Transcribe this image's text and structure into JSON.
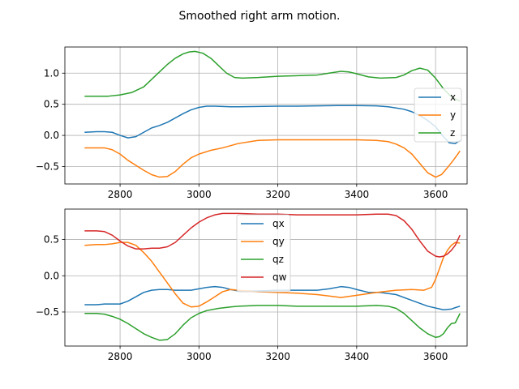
{
  "figure": {
    "title": "Smoothed right arm motion."
  },
  "chart_data": [
    {
      "type": "line",
      "title": "Smoothed right arm motion.",
      "xlabel": "",
      "ylabel": "",
      "xlim": [
        2660,
        3680
      ],
      "ylim": [
        -0.78,
        1.42
      ],
      "xticks": [
        2800,
        3000,
        3200,
        3400,
        3600
      ],
      "yticks": [
        -0.5,
        0.0,
        0.5,
        1.0
      ],
      "xtick_labels": [
        "2800",
        "3000",
        "3200",
        "3400",
        "3600"
      ],
      "ytick_labels": [
        "−0.5",
        "0.0",
        "0.5",
        "1.0"
      ],
      "grid": true,
      "legend_position": "right",
      "series": [
        {
          "name": "x",
          "color": "#1f77b4",
          "x": [
            2710,
            2740,
            2760,
            2780,
            2800,
            2820,
            2840,
            2860,
            2880,
            2900,
            2920,
            2940,
            2960,
            2980,
            3000,
            3020,
            3040,
            3060,
            3080,
            3100,
            3150,
            3200,
            3250,
            3300,
            3350,
            3400,
            3450,
            3480,
            3500,
            3520,
            3540,
            3560,
            3580,
            3600,
            3620,
            3635,
            3650,
            3662
          ],
          "y": [
            0.05,
            0.06,
            0.06,
            0.05,
            0.0,
            -0.04,
            -0.02,
            0.05,
            0.12,
            0.16,
            0.21,
            0.28,
            0.35,
            0.41,
            0.45,
            0.47,
            0.47,
            0.465,
            0.46,
            0.46,
            0.465,
            0.47,
            0.47,
            0.475,
            0.48,
            0.48,
            0.475,
            0.46,
            0.44,
            0.42,
            0.38,
            0.32,
            0.24,
            0.14,
            -0.02,
            -0.12,
            -0.13,
            -0.08
          ]
        },
        {
          "name": "y",
          "color": "#ff7f0e",
          "x": [
            2710,
            2740,
            2760,
            2780,
            2800,
            2820,
            2840,
            2860,
            2880,
            2900,
            2920,
            2940,
            2960,
            2980,
            3000,
            3030,
            3060,
            3100,
            3150,
            3200,
            3250,
            3300,
            3350,
            3400,
            3450,
            3480,
            3500,
            3520,
            3540,
            3560,
            3580,
            3600,
            3615,
            3630,
            3645,
            3662
          ],
          "y": [
            -0.2,
            -0.2,
            -0.2,
            -0.23,
            -0.3,
            -0.4,
            -0.48,
            -0.56,
            -0.63,
            -0.67,
            -0.66,
            -0.58,
            -0.46,
            -0.36,
            -0.3,
            -0.24,
            -0.2,
            -0.13,
            -0.08,
            -0.07,
            -0.07,
            -0.07,
            -0.07,
            -0.07,
            -0.08,
            -0.1,
            -0.14,
            -0.2,
            -0.3,
            -0.45,
            -0.6,
            -0.67,
            -0.63,
            -0.52,
            -0.4,
            -0.25
          ]
        },
        {
          "name": "z",
          "color": "#2ca02c",
          "x": [
            2710,
            2740,
            2770,
            2800,
            2830,
            2860,
            2880,
            2900,
            2920,
            2940,
            2960,
            2975,
            2990,
            3010,
            3030,
            3050,
            3070,
            3090,
            3110,
            3150,
            3200,
            3250,
            3300,
            3330,
            3360,
            3380,
            3400,
            3430,
            3460,
            3500,
            3520,
            3540,
            3560,
            3580,
            3600,
            3620,
            3640,
            3662
          ],
          "y": [
            0.63,
            0.63,
            0.63,
            0.65,
            0.69,
            0.78,
            0.9,
            1.02,
            1.14,
            1.24,
            1.31,
            1.34,
            1.35,
            1.32,
            1.24,
            1.12,
            1.0,
            0.93,
            0.92,
            0.93,
            0.95,
            0.96,
            0.97,
            1.0,
            1.03,
            1.02,
            0.99,
            0.94,
            0.92,
            0.93,
            0.97,
            1.04,
            1.08,
            1.05,
            0.92,
            0.75,
            0.62,
            0.55
          ]
        }
      ]
    },
    {
      "type": "line",
      "xlabel": "",
      "ylabel": "",
      "xlim": [
        2660,
        3680
      ],
      "ylim": [
        -0.97,
        0.92
      ],
      "xticks": [
        2800,
        3000,
        3200,
        3400,
        3600
      ],
      "yticks": [
        -0.5,
        0.0,
        0.5
      ],
      "xtick_labels": [
        "2800",
        "3000",
        "3200",
        "3400",
        "3600"
      ],
      "ytick_labels": [
        "−0.5",
        "0.0",
        "0.5"
      ],
      "grid": true,
      "legend_position": "upper center",
      "series": [
        {
          "name": "qx",
          "color": "#1f77b4",
          "x": [
            2710,
            2740,
            2760,
            2780,
            2800,
            2820,
            2840,
            2860,
            2880,
            2900,
            2920,
            2940,
            2960,
            2980,
            3000,
            3020,
            3040,
            3060,
            3080,
            3100,
            3150,
            3200,
            3250,
            3300,
            3330,
            3360,
            3380,
            3400,
            3430,
            3460,
            3500,
            3540,
            3580,
            3620,
            3640,
            3650,
            3662
          ],
          "y": [
            -0.4,
            -0.4,
            -0.39,
            -0.39,
            -0.39,
            -0.35,
            -0.29,
            -0.23,
            -0.2,
            -0.19,
            -0.19,
            -0.2,
            -0.2,
            -0.2,
            -0.18,
            -0.16,
            -0.15,
            -0.16,
            -0.19,
            -0.21,
            -0.21,
            -0.2,
            -0.2,
            -0.2,
            -0.18,
            -0.15,
            -0.16,
            -0.19,
            -0.23,
            -0.23,
            -0.26,
            -0.34,
            -0.42,
            -0.47,
            -0.46,
            -0.44,
            -0.42
          ]
        },
        {
          "name": "qy",
          "color": "#ff7f0e",
          "x": [
            2710,
            2740,
            2760,
            2780,
            2800,
            2820,
            2840,
            2860,
            2880,
            2900,
            2920,
            2940,
            2960,
            2980,
            3000,
            3020,
            3040,
            3060,
            3080,
            3100,
            3150,
            3200,
            3250,
            3300,
            3330,
            3360,
            3400,
            3450,
            3500,
            3540,
            3570,
            3590,
            3600,
            3610,
            3620,
            3630,
            3640,
            3650,
            3662
          ],
          "y": [
            0.42,
            0.43,
            0.43,
            0.44,
            0.46,
            0.46,
            0.42,
            0.32,
            0.2,
            0.05,
            -0.1,
            -0.25,
            -0.38,
            -0.43,
            -0.42,
            -0.36,
            -0.29,
            -0.22,
            -0.19,
            -0.2,
            -0.22,
            -0.23,
            -0.24,
            -0.26,
            -0.28,
            -0.3,
            -0.27,
            -0.23,
            -0.2,
            -0.19,
            -0.2,
            -0.16,
            -0.05,
            0.1,
            0.25,
            0.35,
            0.42,
            0.46,
            0.45
          ]
        },
        {
          "name": "qz",
          "color": "#2ca02c",
          "x": [
            2710,
            2740,
            2760,
            2780,
            2800,
            2820,
            2840,
            2860,
            2880,
            2900,
            2920,
            2940,
            2960,
            2980,
            3000,
            3020,
            3050,
            3080,
            3100,
            3150,
            3200,
            3250,
            3300,
            3350,
            3400,
            3450,
            3480,
            3500,
            3520,
            3540,
            3560,
            3580,
            3600,
            3610,
            3620,
            3630,
            3640,
            3650,
            3662
          ],
          "y": [
            -0.52,
            -0.52,
            -0.53,
            -0.56,
            -0.6,
            -0.66,
            -0.73,
            -0.8,
            -0.85,
            -0.89,
            -0.88,
            -0.8,
            -0.68,
            -0.58,
            -0.52,
            -0.48,
            -0.45,
            -0.43,
            -0.42,
            -0.41,
            -0.41,
            -0.42,
            -0.42,
            -0.42,
            -0.42,
            -0.41,
            -0.42,
            -0.45,
            -0.52,
            -0.62,
            -0.72,
            -0.8,
            -0.85,
            -0.84,
            -0.8,
            -0.72,
            -0.66,
            -0.65,
            -0.52
          ]
        },
        {
          "name": "qw",
          "color": "#d62728",
          "x": [
            2710,
            2740,
            2760,
            2780,
            2800,
            2820,
            2840,
            2860,
            2880,
            2900,
            2920,
            2940,
            2960,
            2980,
            3000,
            3020,
            3040,
            3060,
            3080,
            3100,
            3150,
            3200,
            3250,
            3300,
            3350,
            3400,
            3450,
            3480,
            3500,
            3520,
            3540,
            3560,
            3580,
            3600,
            3610,
            3620,
            3630,
            3640,
            3650,
            3662
          ],
          "y": [
            0.62,
            0.62,
            0.61,
            0.56,
            0.48,
            0.41,
            0.37,
            0.37,
            0.38,
            0.38,
            0.4,
            0.46,
            0.56,
            0.66,
            0.74,
            0.8,
            0.84,
            0.86,
            0.86,
            0.86,
            0.85,
            0.85,
            0.84,
            0.84,
            0.84,
            0.84,
            0.85,
            0.85,
            0.83,
            0.76,
            0.64,
            0.48,
            0.34,
            0.27,
            0.26,
            0.27,
            0.3,
            0.35,
            0.42,
            0.56
          ]
        }
      ]
    }
  ]
}
